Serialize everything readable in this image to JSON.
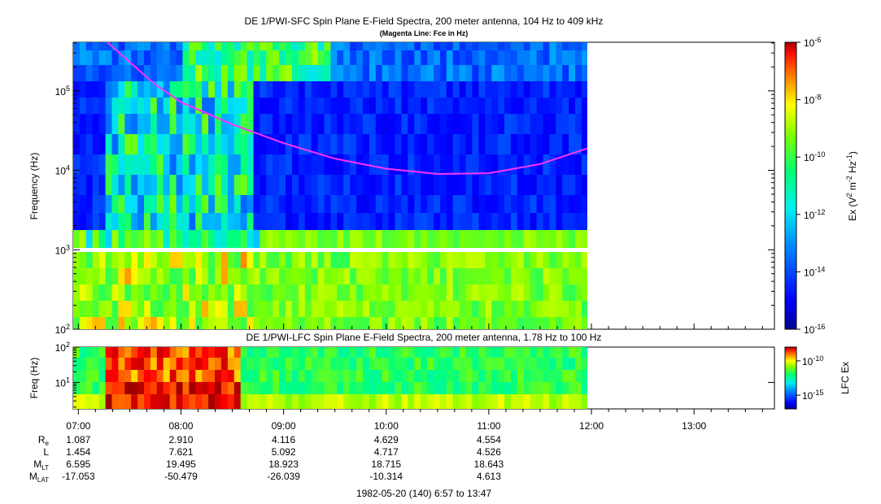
{
  "chart_data": [
    {
      "type": "heatmap",
      "title": "DE 1/PWI-SFC  Spin Plane E-Field Spectra, 200 meter antenna, 104 Hz to 409 kHz",
      "subtitle": "(Magenta Line: Fce in Hz)",
      "ylabel": "Frequency (Hz)",
      "yscale": "log",
      "ylim": [
        100,
        409000
      ],
      "y_ticks": [
        "10^2",
        "10^3",
        "10^4",
        "10^5"
      ],
      "x_time_range": [
        "06:57",
        "13:47"
      ],
      "data_time_range": [
        "06:57",
        "11:58"
      ],
      "colorbar": {
        "label": "Ex (V^2 m^-2 Hz^-1)",
        "scale": "log",
        "range": [
          1e-16,
          1e-06
        ],
        "ticks": [
          "10^-6",
          "10^-8",
          "10^-10",
          "10^-12",
          "10^-14",
          "10^-16"
        ]
      },
      "overlay_line": {
        "name": "Fce",
        "color": "#ff33ff",
        "points": [
          {
            "time": "07:17",
            "hz": 409000
          },
          {
            "time": "07:30",
            "hz": 230000
          },
          {
            "time": "07:45",
            "hz": 120000
          },
          {
            "time": "08:00",
            "hz": 72000
          },
          {
            "time": "08:30",
            "hz": 38000
          },
          {
            "time": "09:00",
            "hz": 22000
          },
          {
            "time": "09:30",
            "hz": 14000
          },
          {
            "time": "10:00",
            "hz": 10500
          },
          {
            "time": "10:30",
            "hz": 9000
          },
          {
            "time": "11:00",
            "hz": 9200
          },
          {
            "time": "11:30",
            "hz": 12000
          },
          {
            "time": "11:58",
            "hz": 19000
          }
        ]
      }
    },
    {
      "type": "heatmap",
      "title": "DE 1/PWI-LFC  Spin Plane E-Field Spectra, 200 meter antenna, 1.78 Hz to 100 Hz",
      "ylabel": "Freq (Hz)",
      "yscale": "log",
      "ylim": [
        1.78,
        100
      ],
      "y_ticks": [
        "10^1",
        "10^2"
      ],
      "colorbar": {
        "label": "LFC Ex",
        "scale": "log",
        "range": [
          1e-17,
          1e-08
        ],
        "ticks": [
          "10^-10",
          "10^-15"
        ]
      }
    }
  ],
  "x_axis": {
    "ticks": [
      "07:00",
      "08:00",
      "09:00",
      "10:00",
      "11:00",
      "12:00",
      "13:00"
    ],
    "ephemeris": [
      {
        "label": "R",
        "sub": "e",
        "values": [
          "1.087",
          "2.910",
          "4.116",
          "4.629",
          "4.554"
        ]
      },
      {
        "label": "L",
        "sub": "",
        "values": [
          "1.454",
          "7.621",
          "5.092",
          "4.717",
          "4.526"
        ]
      },
      {
        "label": "M",
        "sub": "LT",
        "values": [
          "6.595",
          "19.495",
          "18.923",
          "18.715",
          "18.643"
        ]
      },
      {
        "label": "M",
        "sub": "LAT",
        "values": [
          "-17.053",
          "-50.479",
          "-26.039",
          "-10.314",
          "4.613"
        ]
      }
    ],
    "date_label": "1982-05-20 (140) 6:57 to 13:47"
  },
  "colors": {
    "scale": [
      "#00008f",
      "#0000ff",
      "#0080ff",
      "#00e0ff",
      "#00ff80",
      "#80ff00",
      "#ffff00",
      "#ff8000",
      "#ff0000",
      "#a00000"
    ]
  }
}
